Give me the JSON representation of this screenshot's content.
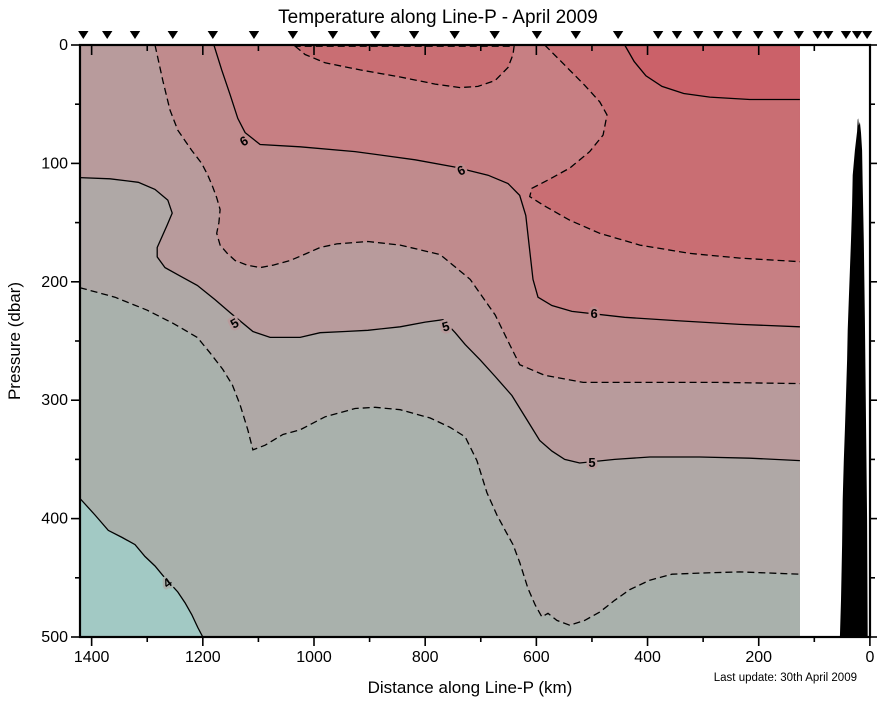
{
  "chart_data": {
    "type": "contour",
    "title": "Temperature along Line-P - April 2009",
    "xlabel": "Distance along Line-P (km)",
    "ylabel": "Pressure (dbar)",
    "annotation": "Last update: 30th April 2009",
    "units": {
      "x": "km",
      "y": "dbar",
      "z": "degC"
    },
    "x_axis": {
      "min": 0,
      "max": 1400,
      "reversed": true,
      "major_step": 200,
      "minor_step": 100,
      "tick_labels": [
        "1400",
        "1200",
        "1000",
        "800",
        "600",
        "400",
        "200",
        "0"
      ],
      "tick_values": [
        1400,
        1200,
        1000,
        800,
        600,
        400,
        200,
        0
      ]
    },
    "y_axis": {
      "min": 0,
      "max": 500,
      "inverted": true,
      "major_step": 100,
      "minor_step": 50,
      "tick_labels": [
        "0",
        "100",
        "200",
        "300",
        "400",
        "500"
      ],
      "tick_values": [
        0,
        100,
        200,
        300,
        400,
        500
      ]
    },
    "data_extent_km": [
      126,
      1421
    ],
    "levels_solid": [
      4,
      5,
      6,
      7
    ],
    "levels_dashed": [
      4.5,
      5.5,
      6.5
    ],
    "band_colors": {
      ">7": "#CB6169",
      "6.5-7": "#C96E73",
      "6-6.5": "#C77F83",
      "5.5-6": "#C08B8D",
      "5-5.5": "#B89B9C",
      "4.5-5": "#AFA8A6",
      "4-4.5": "#A9B1AC",
      "<4": "#A2C9C4"
    },
    "line_color": "#000000",
    "land_color": "#000000",
    "contours": {
      "c7": {
        "level": 7,
        "style": "solid",
        "points": [
          [
            441,
            0
          ],
          [
            424,
            14
          ],
          [
            403,
            26
          ],
          [
            374,
            35
          ],
          [
            335,
            41
          ],
          [
            288,
            44
          ],
          [
            216,
            46
          ],
          [
            126,
            46
          ]
        ]
      },
      "c65": {
        "level": 6.5,
        "style": "dashed",
        "points": [
          [
            585,
            0
          ],
          [
            549,
            17
          ],
          [
            513,
            34
          ],
          [
            486,
            48
          ],
          [
            473,
            59
          ],
          [
            480,
            76
          ],
          [
            504,
            90
          ],
          [
            540,
            104
          ],
          [
            579,
            114
          ],
          [
            608,
            121
          ],
          [
            612,
            128
          ],
          [
            585,
            136
          ],
          [
            540,
            148
          ],
          [
            486,
            159
          ],
          [
            414,
            169
          ],
          [
            324,
            176
          ],
          [
            234,
            180
          ],
          [
            126,
            183
          ]
        ]
      },
      "c65pocket": {
        "level": 6.5,
        "style": "dashed",
        "closed": true,
        "points": [
          [
            1034,
            1
          ],
          [
            1016,
            8
          ],
          [
            980,
            15
          ],
          [
            917,
            21
          ],
          [
            845,
            27
          ],
          [
            782,
            33
          ],
          [
            737,
            36
          ],
          [
            705,
            35
          ],
          [
            674,
            30
          ],
          [
            651,
            19
          ],
          [
            642,
            8
          ],
          [
            640,
            1
          ]
        ]
      },
      "c6": {
        "level": 6,
        "style": "solid",
        "points": [
          [
            1180,
            0
          ],
          [
            1166,
            21
          ],
          [
            1151,
            42
          ],
          [
            1137,
            62
          ],
          [
            1124,
            74
          ],
          [
            1097,
            84
          ],
          [
            1025,
            86
          ],
          [
            926,
            90
          ],
          [
            818,
            97
          ],
          [
            747,
            103
          ],
          [
            687,
            110
          ],
          [
            651,
            117
          ],
          [
            630,
            127
          ],
          [
            619,
            144
          ],
          [
            613,
            169
          ],
          [
            606,
            198
          ],
          [
            597,
            213
          ],
          [
            572,
            220
          ],
          [
            536,
            225
          ],
          [
            441,
            230
          ],
          [
            342,
            233
          ],
          [
            234,
            236
          ],
          [
            126,
            238
          ]
        ]
      },
      "c55": {
        "level": 5.5,
        "style": "dashed",
        "points": [
          [
            1286,
            0
          ],
          [
            1272,
            30
          ],
          [
            1259,
            55
          ],
          [
            1245,
            72
          ],
          [
            1220,
            89
          ],
          [
            1202,
            100
          ],
          [
            1191,
            110
          ],
          [
            1182,
            120
          ],
          [
            1175,
            129
          ],
          [
            1169,
            139
          ],
          [
            1171,
            150
          ],
          [
            1175,
            159
          ],
          [
            1169,
            169
          ],
          [
            1156,
            176
          ],
          [
            1142,
            182
          ],
          [
            1120,
            186
          ],
          [
            1097,
            188
          ],
          [
            1074,
            186
          ],
          [
            1043,
            182
          ],
          [
            1013,
            176
          ],
          [
            989,
            171
          ],
          [
            959,
            168
          ],
          [
            903,
            166
          ],
          [
            845,
            169
          ],
          [
            773,
            177
          ],
          [
            719,
            198
          ],
          [
            674,
            228
          ],
          [
            648,
            253
          ],
          [
            630,
            270
          ],
          [
            585,
            279
          ],
          [
            516,
            285
          ],
          [
            414,
            285
          ],
          [
            270,
            285
          ],
          [
            126,
            286
          ]
        ]
      },
      "c5": {
        "level": 5,
        "style": "solid",
        "points": [
          [
            1421,
            112
          ],
          [
            1367,
            113
          ],
          [
            1316,
            116
          ],
          [
            1286,
            122
          ],
          [
            1263,
            131
          ],
          [
            1255,
            142
          ],
          [
            1264,
            152
          ],
          [
            1282,
            171
          ],
          [
            1282,
            179
          ],
          [
            1268,
            188
          ],
          [
            1241,
            195
          ],
          [
            1210,
            203
          ],
          [
            1178,
            215
          ],
          [
            1151,
            226
          ],
          [
            1110,
            242
          ],
          [
            1079,
            247
          ],
          [
            1052,
            247
          ],
          [
            1025,
            247
          ],
          [
            989,
            243
          ],
          [
            944,
            242
          ],
          [
            903,
            241
          ],
          [
            845,
            238
          ],
          [
            800,
            234
          ],
          [
            768,
            232
          ],
          [
            746,
            243
          ],
          [
            728,
            253
          ],
          [
            701,
            266
          ],
          [
            674,
            280
          ],
          [
            644,
            296
          ],
          [
            615,
            318
          ],
          [
            594,
            334
          ],
          [
            572,
            343
          ],
          [
            549,
            350
          ],
          [
            522,
            353
          ],
          [
            459,
            350
          ],
          [
            396,
            348
          ],
          [
            306,
            348
          ],
          [
            216,
            349
          ],
          [
            126,
            351
          ]
        ]
      },
      "c45": {
        "level": 4.5,
        "style": "dashed",
        "points": [
          [
            1421,
            205
          ],
          [
            1358,
            213
          ],
          [
            1300,
            224
          ],
          [
            1254,
            235
          ],
          [
            1210,
            247
          ],
          [
            1187,
            260
          ],
          [
            1164,
            274
          ],
          [
            1147,
            287
          ],
          [
            1133,
            304
          ],
          [
            1119,
            325
          ],
          [
            1110,
            342
          ],
          [
            1088,
            338
          ],
          [
            1056,
            329
          ],
          [
            1025,
            325
          ],
          [
            980,
            314
          ],
          [
            926,
            307
          ],
          [
            890,
            306
          ],
          [
            845,
            308
          ],
          [
            791,
            315
          ],
          [
            755,
            323
          ],
          [
            728,
            331
          ],
          [
            707,
            351
          ],
          [
            689,
            378
          ],
          [
            671,
            397
          ],
          [
            656,
            410
          ],
          [
            642,
            422
          ],
          [
            630,
            437
          ],
          [
            615,
            459
          ],
          [
            602,
            473
          ],
          [
            590,
            483
          ],
          [
            579,
            480
          ],
          [
            563,
            486
          ],
          [
            540,
            490
          ],
          [
            513,
            486
          ],
          [
            486,
            479
          ],
          [
            459,
            469
          ],
          [
            432,
            460
          ],
          [
            396,
            452
          ],
          [
            356,
            447
          ],
          [
            306,
            446
          ],
          [
            234,
            445
          ],
          [
            126,
            447
          ]
        ]
      },
      "c4": {
        "level": 4,
        "style": "solid",
        "points": [
          [
            1421,
            383
          ],
          [
            1394,
            397
          ],
          [
            1370,
            410
          ],
          [
            1345,
            416
          ],
          [
            1322,
            422
          ],
          [
            1304,
            432
          ],
          [
            1286,
            440
          ],
          [
            1272,
            448
          ],
          [
            1245,
            462
          ],
          [
            1232,
            471
          ],
          [
            1220,
            481
          ],
          [
            1209,
            492
          ],
          [
            1200,
            500
          ]
        ]
      }
    },
    "contour_labels": [
      {
        "text": "6",
        "km": 1122,
        "dbar": 81,
        "rot": -30
      },
      {
        "text": "6",
        "km": 732,
        "dbar": 106,
        "rot": -25
      },
      {
        "text": "6",
        "km": 496,
        "dbar": 227,
        "rot": 0
      },
      {
        "text": "5",
        "km": 1139,
        "dbar": 235,
        "rot": -30
      },
      {
        "text": "5",
        "km": 761,
        "dbar": 238,
        "rot": -15
      },
      {
        "text": "5",
        "km": 500,
        "dbar": 353,
        "rot": 0
      },
      {
        "text": "4",
        "km": 1259,
        "dbar": 454,
        "rot": -35
      }
    ],
    "stations_km": [
      1415,
      1372,
      1322,
      1254,
      1182,
      1108,
      1038,
      966,
      890,
      820,
      747,
      675,
      599,
      529,
      453,
      381,
      347,
      309,
      273,
      239,
      201,
      165,
      128,
      94,
      75,
      43,
      23,
      5
    ],
    "land_profile": [
      [
        54,
        500
      ],
      [
        52,
        469
      ],
      [
        50,
        422
      ],
      [
        49,
        384
      ],
      [
        47,
        351
      ],
      [
        45,
        325
      ],
      [
        43,
        296
      ],
      [
        41,
        266
      ],
      [
        40,
        241
      ],
      [
        38,
        215
      ],
      [
        36,
        190
      ],
      [
        34,
        165
      ],
      [
        32,
        135
      ],
      [
        31,
        110
      ],
      [
        27,
        89
      ],
      [
        23,
        73
      ],
      [
        22,
        63
      ],
      [
        21,
        62
      ],
      [
        20,
        68
      ],
      [
        18,
        65
      ],
      [
        16,
        74
      ],
      [
        14,
        89
      ],
      [
        13,
        118
      ],
      [
        11,
        165
      ],
      [
        9,
        232
      ],
      [
        7,
        317
      ],
      [
        5,
        401
      ],
      [
        4,
        500
      ]
    ]
  }
}
